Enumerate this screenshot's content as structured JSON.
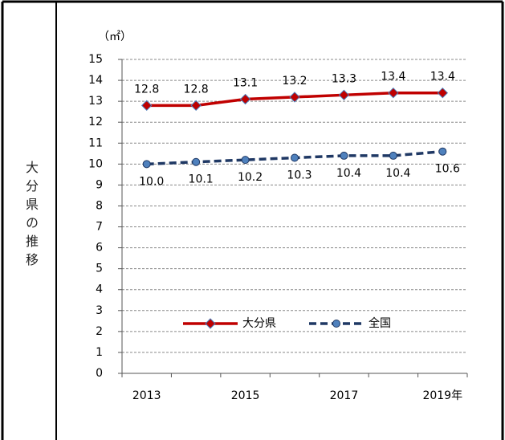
{
  "side_label": "大分県の推移",
  "chart_data": {
    "type": "line",
    "unit_label": "（㎡）",
    "categories": [
      "2013",
      null,
      "2015",
      null,
      "2017",
      null,
      "2019年"
    ],
    "series": [
      {
        "name": "大分県",
        "color": "#c00000",
        "marker": "diamond",
        "dashed": false,
        "values": [
          12.8,
          12.8,
          13.1,
          13.2,
          13.3,
          13.4,
          13.4
        ],
        "value_labels": [
          "12.8",
          "12.8",
          "13.1",
          "13.2",
          "13.3",
          "13.4",
          "13.4"
        ]
      },
      {
        "name": "全国",
        "color": "#1f3864",
        "marker": "circle",
        "dashed": true,
        "values": [
          10.0,
          10.1,
          10.2,
          10.3,
          10.4,
          10.4,
          10.6
        ],
        "value_labels": [
          "10.0",
          "10.1",
          "10.2",
          "10.3",
          "10.4",
          "10.4",
          "10.6"
        ]
      }
    ],
    "ylim": [
      0,
      15
    ],
    "yticks": [
      0,
      1,
      2,
      3,
      4,
      5,
      6,
      7,
      8,
      9,
      10,
      11,
      12,
      13,
      14,
      15
    ],
    "grid": true,
    "legend": "bottom"
  }
}
